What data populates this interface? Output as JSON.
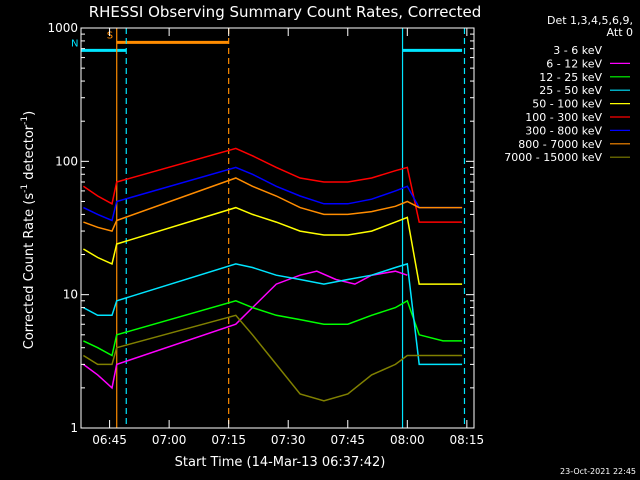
{
  "chart_data": {
    "type": "line",
    "title": "RHESSI Observing Summary Count Rates, Corrected",
    "xlabel": "Start Time (14-Mar-13 06:37:42)",
    "ylabel_main": "Corrected Count Rate (s",
    "ylabel_sup1": "-1",
    "ylabel_mid": " detector",
    "ylabel_sup2": "-1",
    "ylabel_end": ")",
    "y_scale": "log",
    "ylim": [
      1,
      1000
    ],
    "xlim_minutes": [
      6.63,
      8.28
    ],
    "x_ticks": [
      {
        "label": "06:45",
        "value": 6.75
      },
      {
        "label": "07:00",
        "value": 7.0
      },
      {
        "label": "07:15",
        "value": 7.25
      },
      {
        "label": "07:30",
        "value": 7.5
      },
      {
        "label": "07:45",
        "value": 7.75
      },
      {
        "label": "08:00",
        "value": 8.0
      },
      {
        "label": "08:15",
        "value": 8.25
      }
    ],
    "y_ticks": [
      {
        "label": "1",
        "value": 1
      },
      {
        "label": "10",
        "value": 10
      },
      {
        "label": "100",
        "value": 100
      },
      {
        "label": "1000",
        "value": 1000
      }
    ],
    "legend_header": [
      "Det 1,3,4,5,6,9,",
      "Att 0"
    ],
    "legend_position": "outside-right",
    "footer_date": "23-Oct-2021 22:45",
    "flags": [
      {
        "label": "S",
        "color": "#ff8c00",
        "x0": 6.78,
        "x1": 7.25,
        "level": 780
      },
      {
        "label": "N",
        "color": "#00e5ff",
        "x0": 6.63,
        "x1": 6.82,
        "level": 680
      },
      {
        "label": "",
        "color": "#00e5ff",
        "x0": 7.98,
        "x1": 8.23,
        "level": 680
      }
    ],
    "vlines": [
      {
        "x": 6.78,
        "color": "#ff8c00",
        "style": "solid"
      },
      {
        "x": 6.82,
        "color": "#00e5ff",
        "style": "dashed"
      },
      {
        "x": 7.25,
        "color": "#ff8c00",
        "style": "dashed"
      },
      {
        "x": 7.98,
        "color": "#00e5ff",
        "style": "solid"
      },
      {
        "x": 8.24,
        "color": "#00e5ff",
        "style": "dashed"
      }
    ],
    "series": [
      {
        "name": "3 - 6 keV",
        "color": "#000000",
        "points": []
      },
      {
        "name": "6 - 12 keV",
        "color": "#ff00ff",
        "points": [
          [
            6.64,
            3
          ],
          [
            6.7,
            2.5
          ],
          [
            6.76,
            2
          ],
          [
            6.78,
            3
          ],
          [
            7.28,
            6
          ],
          [
            7.35,
            8
          ],
          [
            7.45,
            12
          ],
          [
            7.55,
            14
          ],
          [
            7.62,
            15
          ],
          [
            7.7,
            13
          ],
          [
            7.78,
            12
          ],
          [
            7.85,
            14
          ],
          [
            7.95,
            15
          ],
          [
            8.0,
            14
          ]
        ]
      },
      {
        "name": "12 - 25 keV",
        "color": "#00ff00",
        "points": [
          [
            6.64,
            4.5
          ],
          [
            6.7,
            4
          ],
          [
            6.76,
            3.5
          ],
          [
            6.78,
            5
          ],
          [
            7.28,
            9
          ],
          [
            7.35,
            8
          ],
          [
            7.45,
            7
          ],
          [
            7.55,
            6.5
          ],
          [
            7.65,
            6
          ],
          [
            7.75,
            6
          ],
          [
            7.85,
            7
          ],
          [
            7.95,
            8
          ],
          [
            8.0,
            9
          ],
          [
            8.05,
            5
          ],
          [
            8.15,
            4.5
          ],
          [
            8.23,
            4.5
          ]
        ]
      },
      {
        "name": "25 - 50 keV",
        "color": "#00e5ff",
        "points": [
          [
            6.64,
            8
          ],
          [
            6.7,
            7
          ],
          [
            6.76,
            7
          ],
          [
            6.78,
            9
          ],
          [
            7.28,
            17
          ],
          [
            7.35,
            16
          ],
          [
            7.45,
            14
          ],
          [
            7.55,
            13
          ],
          [
            7.65,
            12
          ],
          [
            7.75,
            13
          ],
          [
            7.85,
            14
          ],
          [
            7.95,
            16
          ],
          [
            8.0,
            17
          ],
          [
            8.05,
            3
          ],
          [
            8.15,
            3
          ],
          [
            8.23,
            3
          ]
        ]
      },
      {
        "name": "50 - 100 keV",
        "color": "#ffff00",
        "points": [
          [
            6.64,
            22
          ],
          [
            6.7,
            19
          ],
          [
            6.76,
            17
          ],
          [
            6.78,
            24
          ],
          [
            7.28,
            45
          ],
          [
            7.35,
            40
          ],
          [
            7.45,
            35
          ],
          [
            7.55,
            30
          ],
          [
            7.65,
            28
          ],
          [
            7.75,
            28
          ],
          [
            7.85,
            30
          ],
          [
            7.95,
            35
          ],
          [
            8.0,
            38
          ],
          [
            8.05,
            12
          ],
          [
            8.15,
            12
          ],
          [
            8.23,
            12
          ]
        ]
      },
      {
        "name": "100 - 300 keV",
        "color": "#ff0000",
        "points": [
          [
            6.64,
            65
          ],
          [
            6.7,
            55
          ],
          [
            6.76,
            48
          ],
          [
            6.78,
            70
          ],
          [
            7.28,
            125
          ],
          [
            7.35,
            110
          ],
          [
            7.45,
            90
          ],
          [
            7.55,
            75
          ],
          [
            7.65,
            70
          ],
          [
            7.75,
            70
          ],
          [
            7.85,
            75
          ],
          [
            7.95,
            85
          ],
          [
            8.0,
            90
          ],
          [
            8.05,
            35
          ],
          [
            8.15,
            35
          ],
          [
            8.23,
            35
          ]
        ]
      },
      {
        "name": "300 - 800 keV",
        "color": "#0000ff",
        "points": [
          [
            6.64,
            45
          ],
          [
            6.7,
            40
          ],
          [
            6.76,
            36
          ],
          [
            6.78,
            50
          ],
          [
            7.28,
            90
          ],
          [
            7.35,
            80
          ],
          [
            7.45,
            65
          ],
          [
            7.55,
            55
          ],
          [
            7.65,
            48
          ],
          [
            7.75,
            48
          ],
          [
            7.85,
            52
          ],
          [
            7.95,
            60
          ],
          [
            8.0,
            65
          ],
          [
            8.05,
            45
          ],
          [
            8.15,
            45
          ],
          [
            8.23,
            45
          ]
        ]
      },
      {
        "name": "800 - 7000 keV",
        "color": "#ff8c00",
        "points": [
          [
            6.64,
            35
          ],
          [
            6.7,
            32
          ],
          [
            6.76,
            30
          ],
          [
            6.78,
            36
          ],
          [
            7.28,
            75
          ],
          [
            7.35,
            65
          ],
          [
            7.45,
            55
          ],
          [
            7.55,
            45
          ],
          [
            7.65,
            40
          ],
          [
            7.75,
            40
          ],
          [
            7.85,
            42
          ],
          [
            7.95,
            46
          ],
          [
            8.0,
            50
          ],
          [
            8.05,
            45
          ],
          [
            8.15,
            45
          ],
          [
            8.23,
            45
          ]
        ]
      },
      {
        "name": "7000 - 15000 keV",
        "color": "#808000",
        "points": [
          [
            6.64,
            3.5
          ],
          [
            6.7,
            3
          ],
          [
            6.76,
            3
          ],
          [
            6.78,
            4
          ],
          [
            7.28,
            7
          ],
          [
            7.35,
            5
          ],
          [
            7.45,
            3
          ],
          [
            7.55,
            1.8
          ],
          [
            7.65,
            1.6
          ],
          [
            7.75,
            1.8
          ],
          [
            7.85,
            2.5
          ],
          [
            7.95,
            3
          ],
          [
            8.0,
            3.5
          ],
          [
            8.05,
            3.5
          ],
          [
            8.15,
            3.5
          ],
          [
            8.23,
            3.5
          ]
        ]
      }
    ]
  }
}
